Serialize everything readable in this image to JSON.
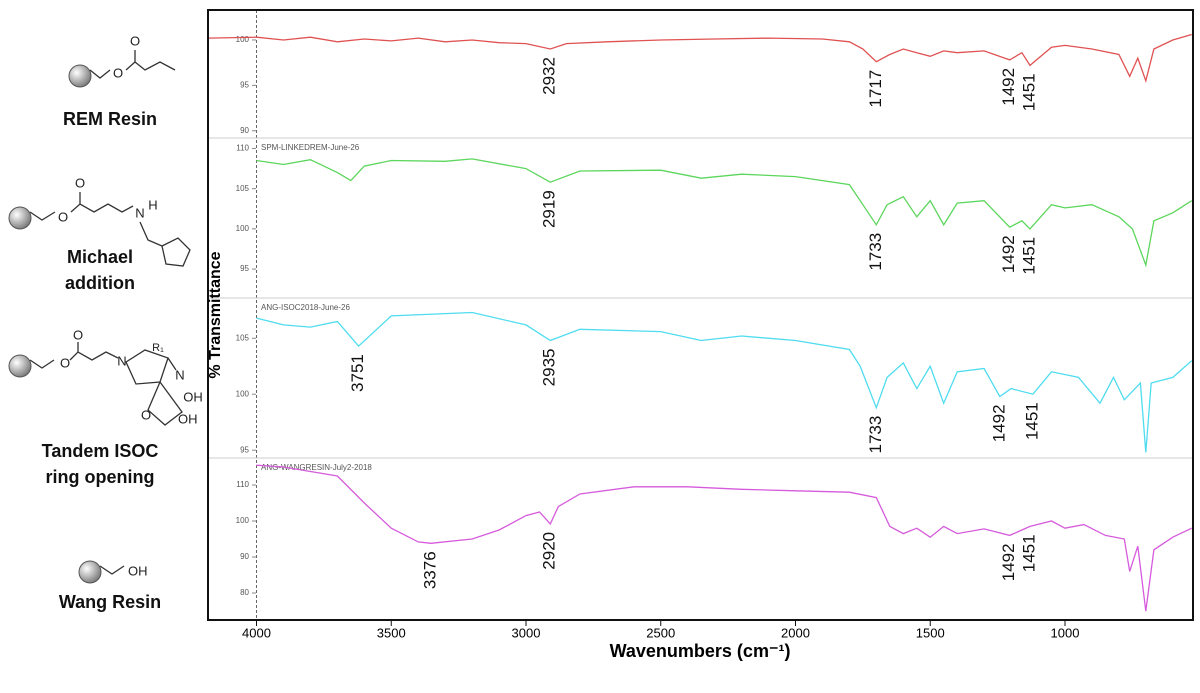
{
  "structures": [
    {
      "label": [
        "REM Resin"
      ],
      "atoms": [
        "O",
        "O"
      ]
    },
    {
      "label": [
        "Michael",
        "addition"
      ],
      "atoms": [
        "O",
        "O",
        "N",
        "H"
      ]
    },
    {
      "label": [
        "Tandem ISOC",
        "ring opening"
      ],
      "atoms": [
        "O",
        "O",
        "N",
        "R₁",
        "N",
        "OH",
        "O",
        "OH"
      ]
    },
    {
      "label": [
        "Wang Resin"
      ],
      "atoms": [
        "OH"
      ]
    }
  ],
  "x_axis": {
    "label": "Wavenumbers (cm⁻¹)",
    "xlim": [
      4180,
      525
    ],
    "xticks": [
      4000,
      3500,
      3000,
      2500,
      2000,
      1500,
      1000
    ]
  },
  "y_axis_label": "% Transmittance",
  "chart_data": [
    {
      "type": "line",
      "color": "#e05252",
      "ylim": [
        89.2,
        103.3
      ],
      "yticks": [
        100,
        95,
        90
      ],
      "x": [
        4180,
        4000,
        3900,
        3800,
        3700,
        3600,
        3500,
        3400,
        3300,
        3200,
        3100,
        3000,
        2910,
        2850,
        2700,
        2500,
        2300,
        2100,
        1900,
        1800,
        1750,
        1700,
        1650,
        1600,
        1550,
        1500,
        1450,
        1400,
        1300,
        1205,
        1160,
        1130,
        1050,
        1000,
        900,
        800,
        760,
        730,
        700,
        670,
        600,
        530
      ],
      "values": [
        100.2,
        100.3,
        100.0,
        100.3,
        99.8,
        100.1,
        99.9,
        100.2,
        99.8,
        100.0,
        99.7,
        99.6,
        99.0,
        99.6,
        99.8,
        100.0,
        100.1,
        100.2,
        100.1,
        99.8,
        99.0,
        97.6,
        98.4,
        99.0,
        98.6,
        98.2,
        98.8,
        98.6,
        98.8,
        97.8,
        98.6,
        97.2,
        99.2,
        99.4,
        99.0,
        98.4,
        96.0,
        98.0,
        95.5,
        99.0,
        100.0,
        100.6
      ],
      "annotations": [
        {
          "label": "2932",
          "x": 2910
        },
        {
          "label": "1717",
          "x": 1700
        },
        {
          "label": "1492",
          "x": 1205
        },
        {
          "label": "1451",
          "x": 1130
        }
      ]
    },
    {
      "type": "line",
      "color": "#5cd65c",
      "name": "SPM-LINKEDREM-June-26",
      "ylim": [
        91.4,
        111.3
      ],
      "yticks": [
        110,
        105,
        100,
        95
      ],
      "x": [
        4000,
        3900,
        3800,
        3700,
        3650,
        3600,
        3500,
        3300,
        3200,
        3000,
        2910,
        2800,
        2500,
        2350,
        2200,
        2000,
        1800,
        1760,
        1700,
        1660,
        1600,
        1550,
        1500,
        1450,
        1400,
        1300,
        1205,
        1160,
        1130,
        1050,
        1000,
        900,
        800,
        750,
        700,
        670,
        600,
        530
      ],
      "values": [
        108.5,
        108.0,
        108.6,
        107.0,
        106.0,
        107.8,
        108.5,
        108.4,
        108.7,
        107.5,
        105.8,
        107.2,
        107.3,
        106.3,
        106.8,
        106.5,
        105.5,
        103.5,
        100.5,
        103.0,
        104.0,
        101.5,
        103.5,
        100.5,
        103.2,
        103.5,
        100.2,
        101.0,
        100.0,
        103.0,
        102.6,
        103.0,
        101.5,
        100.0,
        95.5,
        101.0,
        102.0,
        103.5
      ],
      "annotations": [
        {
          "label": "2919",
          "x": 2910
        },
        {
          "label": "1733",
          "x": 1700
        },
        {
          "label": "1492",
          "x": 1205
        },
        {
          "label": "1451",
          "x": 1130
        }
      ]
    },
    {
      "type": "line",
      "color": "#4fdcef",
      "name": "ANG-ISOC2018-June-26",
      "ylim": [
        94.3,
        108.6
      ],
      "yticks": [
        105,
        100,
        95
      ],
      "x": [
        4000,
        3900,
        3800,
        3700,
        3621,
        3500,
        3200,
        3000,
        2910,
        2800,
        2500,
        2350,
        2200,
        2000,
        1800,
        1760,
        1700,
        1660,
        1600,
        1550,
        1500,
        1450,
        1400,
        1300,
        1242,
        1200,
        1119,
        1050,
        950,
        870,
        820,
        780,
        720,
        700,
        680,
        600,
        530
      ],
      "values": [
        106.8,
        106.2,
        106.0,
        106.5,
        104.3,
        107.0,
        107.3,
        106.2,
        104.8,
        105.8,
        105.6,
        104.8,
        105.2,
        104.8,
        104.0,
        102.5,
        98.8,
        101.5,
        102.8,
        100.5,
        102.5,
        99.2,
        102.0,
        102.3,
        99.8,
        100.5,
        100.0,
        102.0,
        101.5,
        99.2,
        101.5,
        99.5,
        101.0,
        94.8,
        101.0,
        101.5,
        103.0
      ],
      "annotations": [
        {
          "label": "3751",
          "x": 3621
        },
        {
          "label": "2935",
          "x": 2910
        },
        {
          "label": "1733",
          "x": 1700
        },
        {
          "label": "1492",
          "x": 1242
        },
        {
          "label": "1451",
          "x": 1119
        }
      ]
    },
    {
      "type": "line",
      "color": "#d65bdc",
      "name": "ANG-WANGRESIN-July2-2018",
      "ylim": [
        72.5,
        117.5
      ],
      "yticks": [
        110,
        100,
        90,
        80
      ],
      "x": [
        4000,
        3900,
        3700,
        3600,
        3500,
        3400,
        3353,
        3200,
        3100,
        3000,
        2950,
        2910,
        2880,
        2800,
        2600,
        2400,
        2200,
        2000,
        1800,
        1700,
        1650,
        1600,
        1550,
        1500,
        1450,
        1400,
        1300,
        1205,
        1130,
        1050,
        1000,
        930,
        850,
        780,
        760,
        730,
        700,
        670,
        600,
        530
      ],
      "values": [
        115.5,
        115.0,
        112.5,
        105.0,
        98.0,
        94.2,
        93.8,
        95.0,
        97.5,
        101.5,
        102.5,
        99.2,
        104.0,
        107.5,
        109.5,
        109.5,
        108.8,
        108.4,
        108.0,
        106.5,
        98.5,
        96.5,
        98.0,
        95.5,
        98.5,
        96.5,
        97.8,
        96.0,
        98.5,
        100.0,
        98.0,
        99.0,
        96.0,
        95.0,
        86.0,
        93.0,
        75.0,
        92.0,
        95.5,
        98.0
      ],
      "annotations": [
        {
          "label": "3376",
          "x": 3353
        },
        {
          "label": "2920",
          "x": 2910
        },
        {
          "label": "1492",
          "x": 1205
        },
        {
          "label": "1451",
          "x": 1130
        }
      ]
    }
  ]
}
